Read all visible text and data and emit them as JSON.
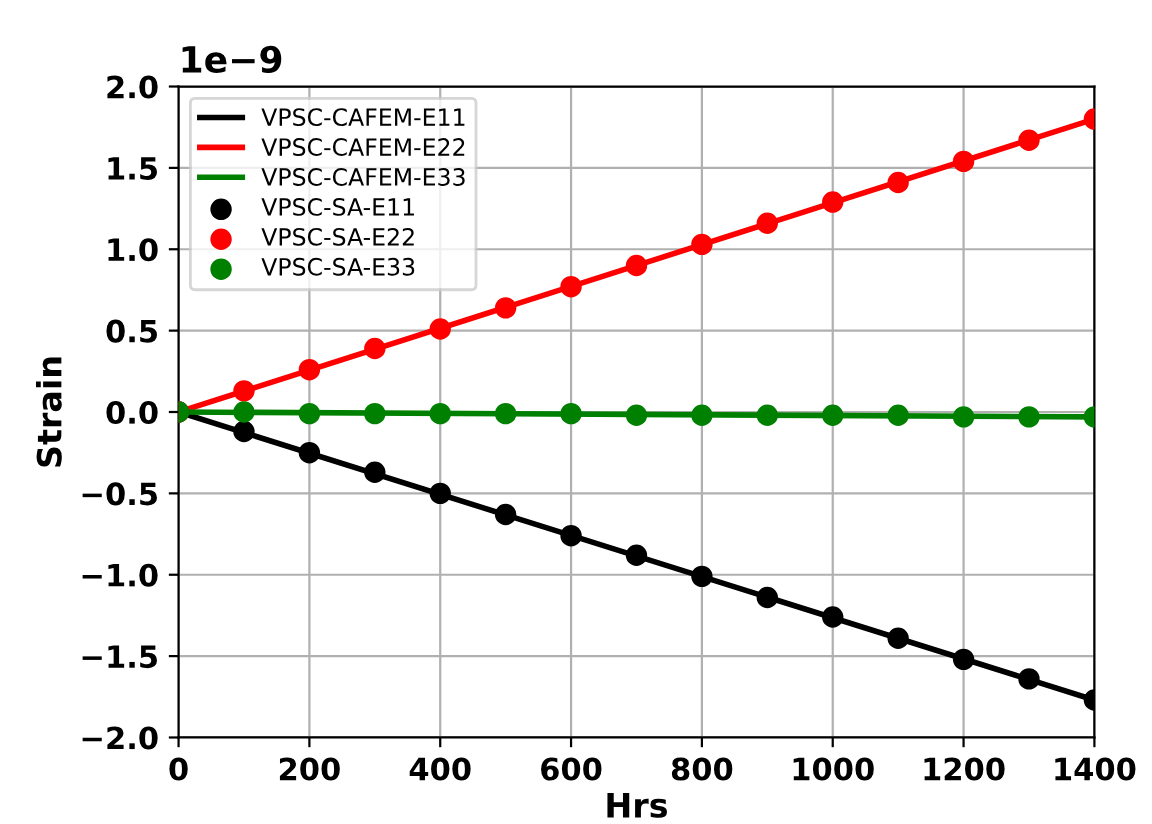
{
  "chart_data": {
    "type": "line",
    "xlabel": "Hrs",
    "ylabel": "Strain",
    "annotations": [
      "1e−9"
    ],
    "xlim": [
      0,
      1400
    ],
    "ylim": [
      -2.0,
      2.0
    ],
    "xticks": [
      0,
      200,
      400,
      600,
      800,
      1000,
      1200,
      1400
    ],
    "yticks": [
      {
        "value": -2.0,
        "label": "−2.0"
      },
      {
        "value": -1.5,
        "label": "−1.5"
      },
      {
        "value": -1.0,
        "label": "−1.0"
      },
      {
        "value": -0.5,
        "label": "−0.5"
      },
      {
        "value": 0.0,
        "label": "0.0"
      },
      {
        "value": 0.5,
        "label": "0.5"
      },
      {
        "value": 1.0,
        "label": "1.0"
      },
      {
        "value": 1.5,
        "label": "1.5"
      },
      {
        "value": 2.0,
        "label": "2.0"
      }
    ],
    "grid": true,
    "legend": "top left",
    "series": [
      {
        "name": "VPSC-CAFEM-E11",
        "color": "#000000",
        "marker": "none",
        "x": [
          0,
          1400
        ],
        "values": [
          0,
          -1.77
        ]
      },
      {
        "name": "VPSC-CAFEM-E22",
        "color": "#ff0000",
        "marker": "none",
        "x": [
          0,
          1400
        ],
        "values": [
          0,
          1.8
        ]
      },
      {
        "name": "VPSC-CAFEM-E33",
        "color": "#008000",
        "marker": "none",
        "x": [
          0,
          1400
        ],
        "values": [
          0,
          -0.03
        ]
      },
      {
        "name": "VPSC-SA-E11",
        "type": "scatter",
        "color": "#000000",
        "marker": "circle",
        "x": [
          0,
          100,
          200,
          300,
          400,
          500,
          600,
          700,
          800,
          900,
          1000,
          1100,
          1200,
          1300,
          1400
        ],
        "values": [
          0,
          -0.12,
          -0.25,
          -0.37,
          -0.5,
          -0.63,
          -0.76,
          -0.88,
          -1.01,
          -1.14,
          -1.26,
          -1.39,
          -1.52,
          -1.64,
          -1.77
        ]
      },
      {
        "name": "VPSC-SA-E22",
        "type": "scatter",
        "color": "#ff0000",
        "marker": "circle",
        "x": [
          0,
          100,
          200,
          300,
          400,
          500,
          600,
          700,
          800,
          900,
          1000,
          1100,
          1200,
          1300,
          1400
        ],
        "values": [
          0,
          0.13,
          0.26,
          0.39,
          0.51,
          0.64,
          0.77,
          0.9,
          1.03,
          1.16,
          1.29,
          1.41,
          1.54,
          1.67,
          1.8
        ]
      },
      {
        "name": "VPSC-SA-E33",
        "type": "scatter",
        "color": "#008000",
        "marker": "circle",
        "x": [
          0,
          100,
          200,
          300,
          400,
          500,
          600,
          700,
          800,
          900,
          1000,
          1100,
          1200,
          1300,
          1400
        ],
        "values": [
          0,
          0,
          -0.01,
          -0.01,
          -0.01,
          -0.01,
          -0.01,
          -0.02,
          -0.02,
          -0.02,
          -0.02,
          -0.02,
          -0.03,
          -0.03,
          -0.03
        ]
      }
    ]
  }
}
